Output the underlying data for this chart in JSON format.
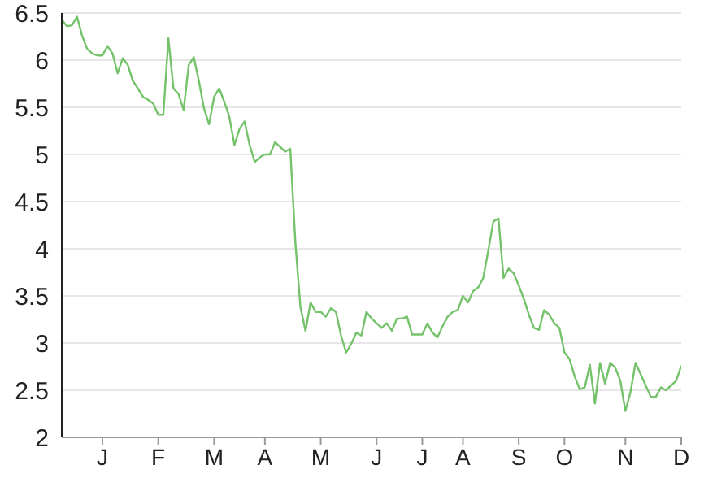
{
  "chart_data": {
    "type": "line",
    "categories": [
      null,
      null,
      null,
      null,
      null,
      null,
      null,
      null,
      "J",
      null,
      null,
      null,
      null,
      null,
      null,
      null,
      null,
      null,
      null,
      "F",
      null,
      null,
      null,
      null,
      null,
      null,
      null,
      null,
      null,
      null,
      "M",
      null,
      null,
      null,
      null,
      null,
      null,
      null,
      null,
      null,
      "A",
      null,
      null,
      null,
      null,
      null,
      null,
      null,
      null,
      null,
      null,
      "M",
      null,
      null,
      null,
      null,
      null,
      null,
      null,
      null,
      null,
      null,
      "J",
      null,
      null,
      null,
      null,
      null,
      null,
      null,
      null,
      "J",
      null,
      null,
      null,
      null,
      null,
      null,
      null,
      "A",
      null,
      null,
      null,
      null,
      null,
      null,
      null,
      null,
      null,
      null,
      "S",
      null,
      null,
      null,
      null,
      null,
      null,
      null,
      null,
      "O",
      null,
      null,
      null,
      null,
      null,
      null,
      null,
      null,
      null,
      null,
      null,
      "N",
      null,
      null,
      null,
      null,
      null,
      null,
      null,
      null,
      null,
      null,
      "D"
    ],
    "series": [
      {
        "color": "#74c26a",
        "values": [
          6.43,
          6.36,
          6.37,
          6.46,
          6.26,
          6.12,
          6.07,
          6.05,
          6.05,
          6.15,
          6.07,
          5.86,
          6.02,
          5.95,
          5.78,
          5.7,
          5.61,
          5.58,
          5.54,
          5.42,
          5.42,
          6.23,
          5.7,
          5.64,
          5.47,
          5.95,
          6.03,
          5.78,
          5.49,
          5.32,
          5.61,
          5.7,
          5.56,
          5.4,
          5.1,
          5.27,
          5.35,
          5.1,
          4.92,
          4.97,
          5.0,
          5.0,
          5.13,
          5.08,
          5.03,
          5.06,
          4.07,
          3.38,
          3.13,
          3.43,
          3.33,
          3.33,
          3.28,
          3.37,
          3.33,
          3.08,
          2.9,
          2.99,
          3.11,
          3.08,
          3.33,
          3.26,
          3.21,
          3.16,
          3.21,
          3.13,
          3.26,
          3.26,
          3.28,
          3.09,
          3.09,
          3.09,
          3.21,
          3.11,
          3.06,
          3.18,
          3.28,
          3.33,
          3.35,
          3.5,
          3.43,
          3.55,
          3.59,
          3.69,
          3.98,
          4.29,
          4.32,
          3.69,
          3.79,
          3.74,
          3.61,
          3.47,
          3.3,
          3.16,
          3.14,
          3.35,
          3.3,
          3.21,
          3.16,
          2.9,
          2.83,
          2.65,
          2.51,
          2.53,
          2.77,
          2.36,
          2.79,
          2.57,
          2.79,
          2.74,
          2.6,
          2.28,
          2.48,
          2.79,
          2.67,
          2.55,
          2.43,
          2.43,
          2.53,
          2.5,
          2.55,
          2.6,
          2.76
        ]
      }
    ],
    "ylim": [
      2,
      6.5
    ],
    "yticks": [
      2,
      2.5,
      3,
      3.5,
      4,
      4.5,
      5,
      5.5,
      6,
      6.5
    ],
    "grid": "y",
    "legend": false,
    "marker": "none",
    "line_style": "solid"
  }
}
